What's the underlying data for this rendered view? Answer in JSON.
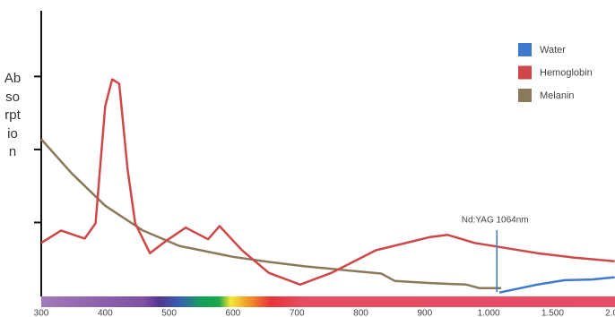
{
  "chart_data": {
    "type": "line",
    "y_label": "Absorption",
    "xlim": [
      300,
      2000
    ],
    "ylim": [
      0,
      3.9
    ],
    "xticks": [
      300,
      400,
      500,
      600,
      700,
      800,
      900,
      {
        "value": 1000,
        "label": "1.000"
      },
      {
        "value": 1500,
        "label": "1.500"
      },
      {
        "value": 2000,
        "label": "2.000"
      }
    ],
    "yticks": [
      1,
      2,
      3
    ],
    "legend": "top-right",
    "series": [
      {
        "name": "Water",
        "color": "#3f78cc",
        "x": [
          1084,
          1380,
          1595,
          1806,
          1985
        ],
        "values": [
          0.04,
          0.15,
          0.21,
          0.22,
          0.25
        ]
      },
      {
        "name": "Hemoglobin",
        "color": "#cf4747",
        "x": [
          300,
          331,
          368,
          385,
          400,
          411,
          422,
          435,
          447,
          470,
          494,
          526,
          561,
          579,
          614,
          656,
          705,
          754,
          824,
          908,
          936,
          978,
          1380,
          1665,
          1985
        ],
        "values": [
          0.72,
          0.89,
          0.78,
          0.99,
          2.59,
          2.96,
          2.9,
          1.73,
          0.99,
          0.58,
          0.74,
          0.93,
          0.77,
          0.95,
          0.62,
          0.31,
          0.15,
          0.31,
          0.62,
          0.8,
          0.83,
          0.72,
          0.58,
          0.52,
          0.47
        ]
      },
      {
        "name": "Melanin",
        "color": "#8b7a5a",
        "x": [
          300,
          348,
          400,
          459,
          516,
          600,
          656,
          712,
          796,
          832,
          853,
          909,
          965,
          986,
          1098
        ],
        "values": [
          2.14,
          1.67,
          1.23,
          0.89,
          0.68,
          0.53,
          0.46,
          0.4,
          0.33,
          0.3,
          0.2,
          0.17,
          0.15,
          0.1,
          0.1
        ]
      }
    ],
    "annotations": [
      {
        "text": "Nd:YAG 1064nm",
        "x": 1064
      }
    ]
  }
}
